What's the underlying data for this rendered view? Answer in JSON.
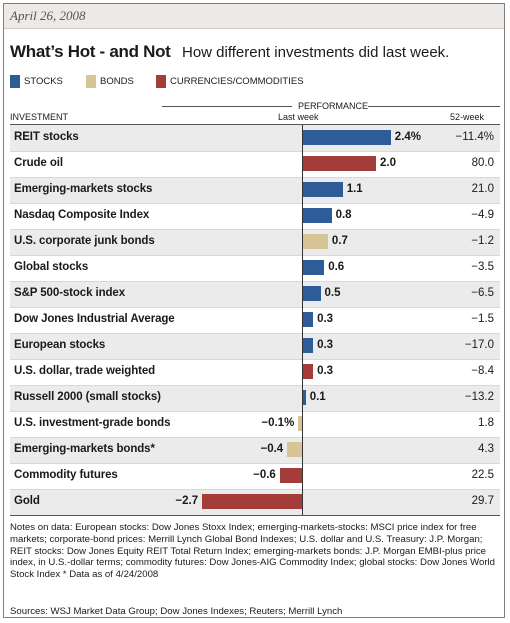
{
  "date": "April 26, 2008",
  "title": "What’s Hot - and Not",
  "subtitle": "How different investments did last week.",
  "legend": [
    {
      "label": "STOCKS",
      "color": "#2e5c99"
    },
    {
      "label": "BONDS",
      "color": "#d7c597"
    },
    {
      "label": "CURRENCIES/COMMODITIES",
      "color": "#a43c39"
    }
  ],
  "headers": {
    "investment": "INVESTMENT",
    "performance": "PERFORMANCE",
    "last_week": "Last week",
    "week52": "52-week"
  },
  "chart_data": {
    "type": "bar",
    "orientation": "horizontal",
    "x_range": [
      -2.7,
      2.4
    ],
    "categories": [
      "REIT stocks",
      "Crude oil",
      "Emerging-markets stocks",
      "Nasdaq Composite Index",
      "U.S. corporate junk bonds",
      "Global stocks",
      "S&P 500-stock index",
      "Dow Jones Industrial Average",
      "European stocks",
      "U.S. dollar, trade weighted",
      "Russell 2000 (small stocks)",
      "U.S. investment-grade bonds",
      "Emerging-markets bonds*",
      "Commodity futures",
      "Gold"
    ],
    "values": [
      2.4,
      2.0,
      1.1,
      0.8,
      0.7,
      0.6,
      0.5,
      0.3,
      0.3,
      0.3,
      0.1,
      -0.1,
      -0.4,
      -0.6,
      -2.7
    ],
    "value_labels": [
      "2.4%",
      "2.0",
      "1.1",
      "0.8",
      "0.7",
      "0.6",
      "0.5",
      "0.3",
      "0.3",
      "0.3",
      "0.1",
      "−0.1%",
      "−0.4",
      "−0.6",
      "−2.7"
    ],
    "series_type": [
      "stocks",
      "commodities",
      "stocks",
      "stocks",
      "bonds",
      "stocks",
      "stocks",
      "stocks",
      "stocks",
      "commodities",
      "stocks",
      "bonds",
      "bonds",
      "commodities",
      "commodities"
    ],
    "week52": [
      "−11.4%",
      "80.0",
      "21.0",
      "−4.9",
      "−1.2",
      "−3.5",
      "−6.5",
      "−1.5",
      "−17.0",
      "−8.4",
      "−13.2",
      "1.8",
      "4.3",
      "22.5",
      "29.7"
    ],
    "colors": {
      "stocks": "#2e5c99",
      "bonds": "#d7c597",
      "commodities": "#a43c39"
    }
  },
  "notes": "Notes on data: European stocks: Dow Jones Stoxx Index; emerging-markets-stocks: MSCI price index for free markets; corporate-bond prices: Merrill Lynch Global Bond Indexes; U.S. dollar and U.S. Treasury: J.P. Morgan; REIT stocks: Dow Jones Equity REIT Total Return Index; emerging-markets bonds: J.P. Morgan EMBI-plus price index, in U.S.-dollar terms; commodity futures: Dow Jones-AIG Commodity Index; global stocks: Dow Jones World Stock Index    * Data as of 4/24/2008",
  "sources": "Sources: WSJ Market Data Group; Dow Jones Indexes; Reuters; Merrill Lynch"
}
